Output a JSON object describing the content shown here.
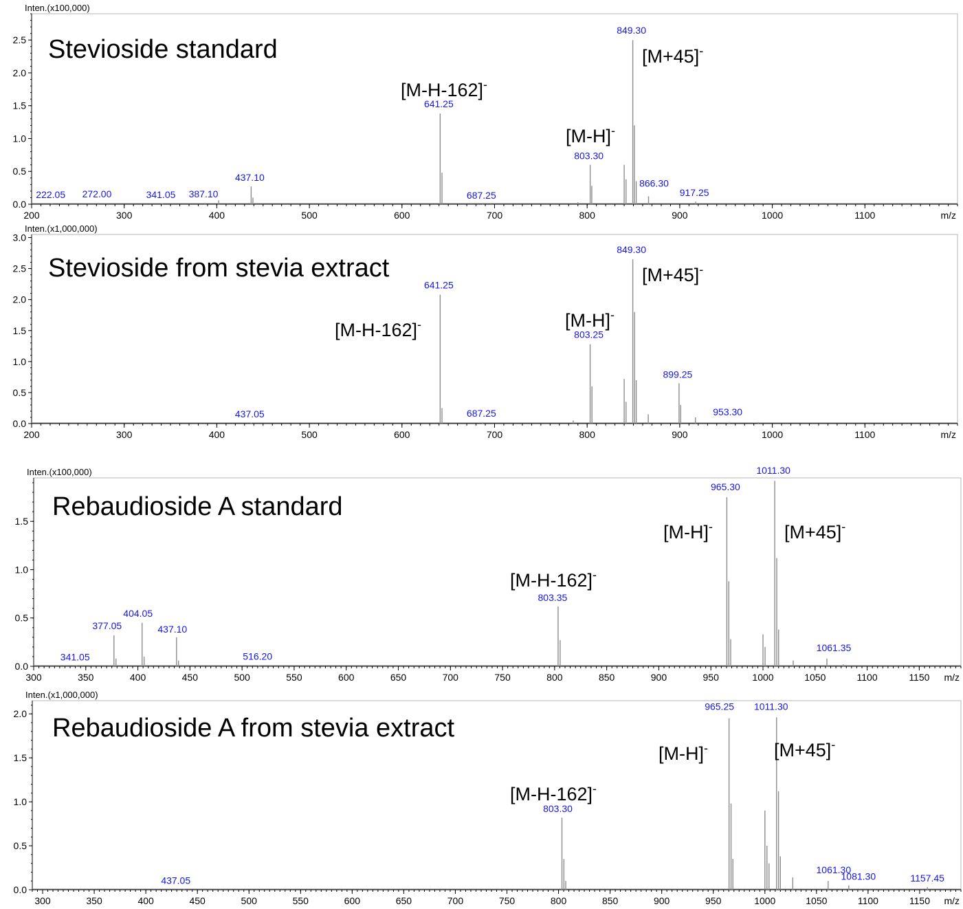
{
  "chart_data": [
    {
      "type": "line",
      "title": "Stevioside standard",
      "ylabel": "Inten.(x100,000)",
      "xlabel": "m/z",
      "xlim": [
        200,
        1200
      ],
      "x_ticks": [
        200,
        300,
        400,
        500,
        600,
        700,
        800,
        900,
        1000,
        1100
      ],
      "ylim": [
        0,
        2.9
      ],
      "y_ticks": [
        0.0,
        0.5,
        1.0,
        1.5,
        2.0,
        2.5
      ],
      "y_tick_labels": [
        "0.0",
        "0.5",
        "1.0",
        "1.5",
        "2.0",
        "2.5"
      ],
      "series": [
        {
          "x": [
            222.05,
            272.0,
            341.05,
            387.1,
            402,
            437.1,
            439,
            641.25,
            643.2,
            687.25,
            790,
            803.3,
            805,
            840,
            842,
            849.3,
            851,
            853,
            866.3,
            917.25
          ],
          "y": [
            0.01,
            0.02,
            0.01,
            0.02,
            0.06,
            0.27,
            0.1,
            1.38,
            0.48,
            0.02,
            0.03,
            0.6,
            0.28,
            0.6,
            0.38,
            2.5,
            1.2,
            0.35,
            0.12,
            0.04
          ]
        }
      ],
      "peak_labels": [
        {
          "x": 222.05,
          "y": 0.01,
          "text": "222.05"
        },
        {
          "x": 272.0,
          "y": 0.02,
          "text": "272.00"
        },
        {
          "x": 341.05,
          "y": 0.01,
          "text": "341.05"
        },
        {
          "x": 387.1,
          "y": 0.02,
          "text": "387.10"
        },
        {
          "x": 437.1,
          "y": 0.27,
          "text": "437.10"
        },
        {
          "x": 641.25,
          "y": 1.38,
          "text": "641.25"
        },
        {
          "x": 687.25,
          "y": 0.02,
          "text": "687.25"
        },
        {
          "x": 803.3,
          "y": 0.6,
          "text": "803.30"
        },
        {
          "x": 849.3,
          "y": 2.5,
          "text": "849.30"
        },
        {
          "x": 866.3,
          "y": 0.12,
          "text": "866.30"
        },
        {
          "x": 917.25,
          "y": 0.04,
          "text": "917.25"
        }
      ],
      "annotations": [
        {
          "text": "[M-H-162]",
          "superscript": "-",
          "x": 641.25,
          "y": 1.38
        },
        {
          "text": "[M-H]",
          "superscript": "-",
          "x": 803.3,
          "y": 0.6
        },
        {
          "text": "[M+45]",
          "superscript": "-",
          "x": 849.3,
          "y": 2.5
        }
      ]
    },
    {
      "type": "line",
      "title": "Stevioside from stevia extract",
      "ylabel": "Inten.(x1,000,000)",
      "xlabel": "m/z",
      "xlim": [
        200,
        1200
      ],
      "x_ticks": [
        200,
        300,
        400,
        500,
        600,
        700,
        800,
        900,
        1000,
        1100
      ],
      "ylim": [
        0,
        3.05
      ],
      "y_ticks": [
        0.0,
        0.5,
        1.0,
        1.5,
        2.0,
        2.5,
        3.0
      ],
      "y_tick_labels": [
        "0.0",
        "0.5",
        "1.0",
        "1.5",
        "2.0",
        "2.5",
        "3.0"
      ],
      "series": [
        {
          "x": [
            437.05,
            641.25,
            643.2,
            687.25,
            785,
            803.25,
            805.2,
            840,
            842,
            849.3,
            851.2,
            853,
            866,
            899.25,
            901,
            917,
            953.3,
            985
          ],
          "y": [
            0.01,
            2.08,
            0.25,
            0.02,
            0.05,
            1.28,
            0.6,
            0.72,
            0.35,
            2.65,
            1.8,
            0.7,
            0.15,
            0.65,
            0.3,
            0.1,
            0.02,
            0.02
          ]
        }
      ],
      "peak_labels": [
        {
          "x": 437.05,
          "y": 0.01,
          "text": "437.05"
        },
        {
          "x": 641.25,
          "y": 2.08,
          "text": "641.25"
        },
        {
          "x": 687.25,
          "y": 0.02,
          "text": "687.25"
        },
        {
          "x": 803.25,
          "y": 1.28,
          "text": "803.25"
        },
        {
          "x": 849.3,
          "y": 2.65,
          "text": "849.30"
        },
        {
          "x": 899.25,
          "y": 0.65,
          "text": "899.25"
        },
        {
          "x": 953.3,
          "y": 0.02,
          "text": "953.30"
        }
      ],
      "annotations": [
        {
          "text": "[M-H-162]",
          "superscript": "-",
          "x": 641.25,
          "y": 2.08
        },
        {
          "text": "[M-H]",
          "superscript": "-",
          "x": 803.25,
          "y": 1.28
        },
        {
          "text": "[M+45]",
          "superscript": "-",
          "x": 849.3,
          "y": 2.65
        }
      ]
    },
    {
      "type": "line",
      "title": "Rebaudioside A standard",
      "ylabel": "Inten.(x100,000)",
      "xlabel": "m/z",
      "xlim": [
        300,
        1190
      ],
      "x_ticks": [
        300,
        350,
        400,
        450,
        500,
        550,
        600,
        650,
        700,
        750,
        800,
        850,
        900,
        950,
        1000,
        1050,
        1100,
        1150
      ],
      "ylim": [
        0,
        1.95
      ],
      "y_ticks": [
        0.0,
        0.5,
        1.0,
        1.5
      ],
      "y_tick_labels": [
        "0.0",
        "0.5",
        "1.0",
        "1.5"
      ],
      "series": [
        {
          "x": [
            341.05,
            377.05,
            379,
            404.05,
            406,
            437.1,
            439,
            516.2,
            803.35,
            805.3,
            965.3,
            967.2,
            969,
            1000,
            1002,
            1011.3,
            1013.2,
            1015,
            1029,
            1061.35,
            1077
          ],
          "y": [
            0.01,
            0.32,
            0.08,
            0.45,
            0.1,
            0.3,
            0.06,
            0.01,
            0.62,
            0.27,
            1.75,
            0.88,
            0.28,
            0.33,
            0.2,
            1.92,
            1.12,
            0.38,
            0.06,
            0.08,
            0.02
          ]
        }
      ],
      "peak_labels": [
        {
          "x": 341.05,
          "y": 0.01,
          "text": "341.05"
        },
        {
          "x": 377.05,
          "y": 0.32,
          "text": "377.05"
        },
        {
          "x": 404.05,
          "y": 0.45,
          "text": "404.05"
        },
        {
          "x": 437.1,
          "y": 0.3,
          "text": "437.10"
        },
        {
          "x": 516.2,
          "y": 0.01,
          "text": "516.20"
        },
        {
          "x": 803.35,
          "y": 0.62,
          "text": "803.35"
        },
        {
          "x": 965.3,
          "y": 1.75,
          "text": "965.30"
        },
        {
          "x": 1011.3,
          "y": 1.92,
          "text": "1011.30"
        },
        {
          "x": 1061.35,
          "y": 0.08,
          "text": "1061.35"
        }
      ],
      "annotations": [
        {
          "text": "[M-H-162]",
          "superscript": "-",
          "x": 803.35,
          "y": 0.62
        },
        {
          "text": "[M-H]",
          "superscript": "-",
          "x": 965.3,
          "y": 1.75
        },
        {
          "text": "[M+45]",
          "superscript": "-",
          "x": 1011.3,
          "y": 1.92
        }
      ]
    },
    {
      "type": "line",
      "title": "Rebaudioside A from stevia extract",
      "ylabel": "Inten.(x1,000,000)",
      "xlabel": "m/z",
      "xlim": [
        290,
        1190
      ],
      "x_ticks": [
        300,
        350,
        400,
        450,
        500,
        550,
        600,
        650,
        700,
        750,
        800,
        850,
        900,
        950,
        1000,
        1050,
        1100,
        1150
      ],
      "ylim": [
        0,
        2.15
      ],
      "y_ticks": [
        0.0,
        0.5,
        1.0,
        1.5,
        2.0
      ],
      "y_tick_labels": [
        "0.0",
        "0.5",
        "1.0",
        "1.5",
        "2.0"
      ],
      "series": [
        {
          "x": [
            437.05,
            803.3,
            805.2,
            807,
            965.25,
            967.2,
            969,
            1000,
            1002,
            1004,
            1011.3,
            1013.2,
            1015,
            1027,
            1061.3,
            1081.3,
            1157.45
          ],
          "y": [
            0.01,
            0.82,
            0.35,
            0.1,
            1.95,
            0.98,
            0.35,
            0.9,
            0.5,
            0.3,
            1.96,
            1.12,
            0.38,
            0.14,
            0.1,
            0.05,
            0.03
          ]
        }
      ],
      "peak_labels": [
        {
          "x": 437.05,
          "y": 0.01,
          "text": "437.05"
        },
        {
          "x": 803.3,
          "y": 0.82,
          "text": "803.30"
        },
        {
          "x": 965.25,
          "y": 1.95,
          "text": "965.25"
        },
        {
          "x": 1011.3,
          "y": 1.96,
          "text": "1011.30"
        },
        {
          "x": 1061.3,
          "y": 0.1,
          "text": "1061.30"
        },
        {
          "x": 1081.3,
          "y": 0.05,
          "text": "1081.30"
        },
        {
          "x": 1157.45,
          "y": 0.03,
          "text": "1157.45"
        }
      ],
      "annotations": [
        {
          "text": "[M-H-162]",
          "superscript": "-",
          "x": 803.3,
          "y": 0.82
        },
        {
          "text": "[M-H]",
          "superscript": "-",
          "x": 965.25,
          "y": 1.95
        },
        {
          "text": "[M+45]",
          "superscript": "-",
          "x": 1011.3,
          "y": 1.96
        }
      ]
    }
  ],
  "colors": {
    "peak_line": "#8c8c8c",
    "peak_label": "#1515e6",
    "axis": "#000000",
    "frame": "#b4b4b4",
    "text": "#000000"
  }
}
